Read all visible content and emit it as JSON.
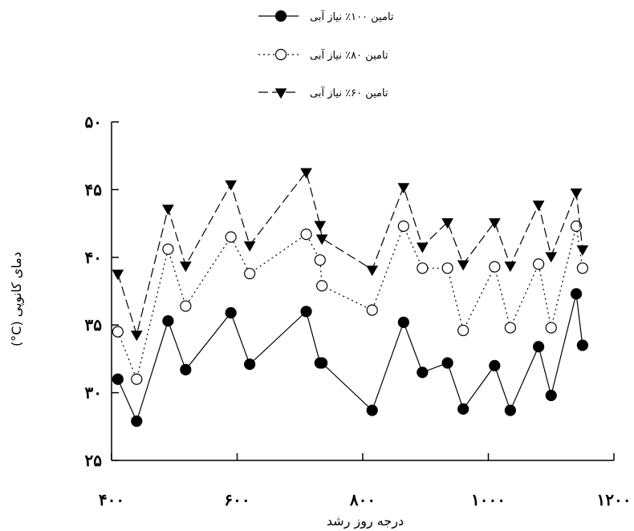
{
  "chart_data": {
    "type": "line",
    "xlabel": "درجه روز رشد",
    "ylabel": "دمای کانوپی (C°)",
    "xlim": [
      400,
      1200
    ],
    "ylim": [
      25,
      50
    ],
    "x_ticks": [
      400,
      600,
      800,
      1000,
      1200
    ],
    "y_ticks": [
      25,
      30,
      35,
      40,
      45,
      50
    ],
    "x_tick_labels": [
      "۴۰۰",
      "۶۰۰",
      "۸۰۰",
      "۱۰۰۰",
      "۱۲۰۰"
    ],
    "y_tick_labels": [
      "۲۵",
      "۳۰",
      "۳۵",
      "۴۰",
      "۴۵",
      "۵۰"
    ],
    "grid": false,
    "legend_position": "top-center",
    "series": [
      {
        "name": "تامین ۱۰۰٪ نیاز آبی",
        "marker": "filled-circle",
        "line_style": "solid",
        "x": [
          410,
          440,
          490,
          518,
          590,
          620,
          710,
          732,
          735,
          815,
          865,
          895,
          935,
          960,
          1010,
          1035,
          1080,
          1100,
          1140,
          1150
        ],
        "y": [
          31,
          27.9,
          35.3,
          31.7,
          35.9,
          32.1,
          36,
          32.2,
          32.2,
          28.7,
          35.2,
          31.5,
          32.2,
          28.8,
          32,
          28.7,
          33.4,
          29.8,
          37.3,
          33.5
        ]
      },
      {
        "name": "تامین ۸۰٪ نیاز آبی",
        "marker": "open-circle",
        "line_style": "dotted",
        "x": [
          410,
          440,
          490,
          518,
          590,
          620,
          710,
          732,
          735,
          815,
          865,
          895,
          935,
          960,
          1010,
          1035,
          1080,
          1100,
          1140,
          1150
        ],
        "y": [
          34.5,
          31,
          40.6,
          36.4,
          41.5,
          38.8,
          41.7,
          39.8,
          37.9,
          36.1,
          42.3,
          39.2,
          39.2,
          34.6,
          39.3,
          34.8,
          39.5,
          34.8,
          42.3,
          39.2
        ]
      },
      {
        "name": "تامین ۶۰٪ نیاز آبی",
        "marker": "filled-triangle-down",
        "line_style": "dashed",
        "x": [
          410,
          440,
          490,
          518,
          590,
          620,
          710,
          732,
          735,
          815,
          865,
          895,
          935,
          960,
          1010,
          1035,
          1080,
          1100,
          1140,
          1150
        ],
        "y": [
          38.8,
          34.3,
          43.6,
          39.4,
          45.4,
          40.9,
          46.3,
          42.4,
          41.4,
          39.1,
          45.2,
          40.8,
          42.6,
          39.5,
          42.6,
          39.4,
          43.9,
          40.1,
          44.8,
          40.6
        ]
      }
    ]
  },
  "colors": {
    "ink": "#000000",
    "background": "#ffffff",
    "open_marker_fill": "#ffffff"
  }
}
